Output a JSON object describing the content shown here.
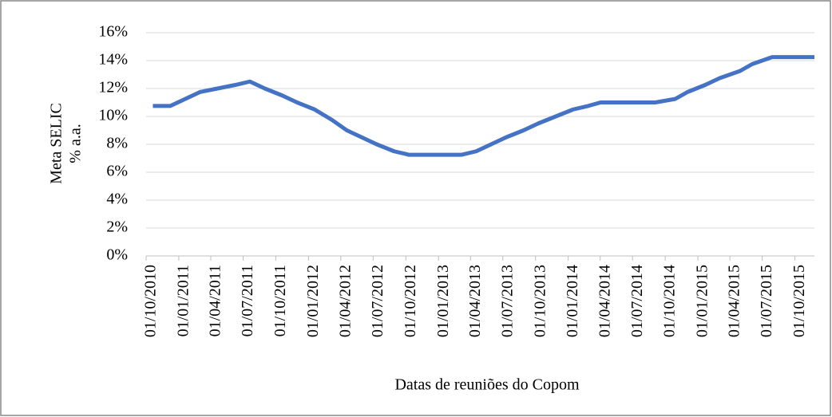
{
  "chart_data": {
    "type": "line",
    "ylabel": [
      "Meta SELIC",
      "% a.a."
    ],
    "xlabel": "Datas de reuniões do Copom",
    "x": [
      "20/10/2010",
      "08/12/2010",
      "19/01/2011",
      "02/03/2011",
      "20/04/2011",
      "08/06/2011",
      "20/07/2011",
      "31/08/2011",
      "19/10/2011",
      "30/11/2011",
      "18/01/2012",
      "07/03/2012",
      "18/04/2012",
      "30/05/2012",
      "11/07/2012",
      "29/08/2012",
      "10/10/2012",
      "28/11/2012",
      "16/01/2013",
      "06/03/2013",
      "17/04/2013",
      "29/05/2013",
      "10/07/2013",
      "28/08/2013",
      "09/10/2013",
      "27/11/2013",
      "15/01/2014",
      "26/02/2014",
      "02/04/2014",
      "28/05/2014",
      "16/07/2014",
      "03/09/2014",
      "29/10/2014",
      "03/12/2014",
      "21/01/2015",
      "04/03/2015",
      "29/04/2015",
      "03/06/2015",
      "29/07/2015",
      "02/09/2015",
      "21/10/2015",
      "25/11/2015"
    ],
    "series": [
      {
        "name": "Meta SELIC",
        "color": "#4472c4",
        "values": [
          10.75,
          10.75,
          11.25,
          11.75,
          12.0,
          12.25,
          12.5,
          12.0,
          11.5,
          11.0,
          10.5,
          9.75,
          9.0,
          8.5,
          8.0,
          7.5,
          7.25,
          7.25,
          7.25,
          7.25,
          7.5,
          8.0,
          8.5,
          9.0,
          9.5,
          10.0,
          10.5,
          10.75,
          11.0,
          11.0,
          11.0,
          11.0,
          11.25,
          11.75,
          12.25,
          12.75,
          13.25,
          13.75,
          14.25,
          14.25,
          14.25,
          14.25
        ]
      }
    ],
    "xlim": [
      "01/10/2010",
      "25/11/2015"
    ],
    "xticks": [
      "01/10/2010",
      "01/01/2011",
      "01/04/2011",
      "01/07/2011",
      "01/10/2011",
      "01/01/2012",
      "01/04/2012",
      "01/07/2012",
      "01/10/2012",
      "01/01/2013",
      "01/04/2013",
      "01/07/2013",
      "01/10/2013",
      "01/01/2014",
      "01/04/2014",
      "01/07/2014",
      "01/10/2014",
      "01/01/2015",
      "01/04/2015",
      "01/07/2015",
      "01/10/2015"
    ],
    "ylim": [
      0,
      16
    ],
    "yticks": [
      {
        "value": 0,
        "label": "0%"
      },
      {
        "value": 2,
        "label": "2%"
      },
      {
        "value": 4,
        "label": "4%"
      },
      {
        "value": 6,
        "label": "6%"
      },
      {
        "value": 8,
        "label": "8%"
      },
      {
        "value": 10,
        "label": "10%"
      },
      {
        "value": 12,
        "label": "12%"
      },
      {
        "value": 14,
        "label": "14%"
      },
      {
        "value": 16,
        "label": "16%"
      }
    ],
    "grid": true
  }
}
